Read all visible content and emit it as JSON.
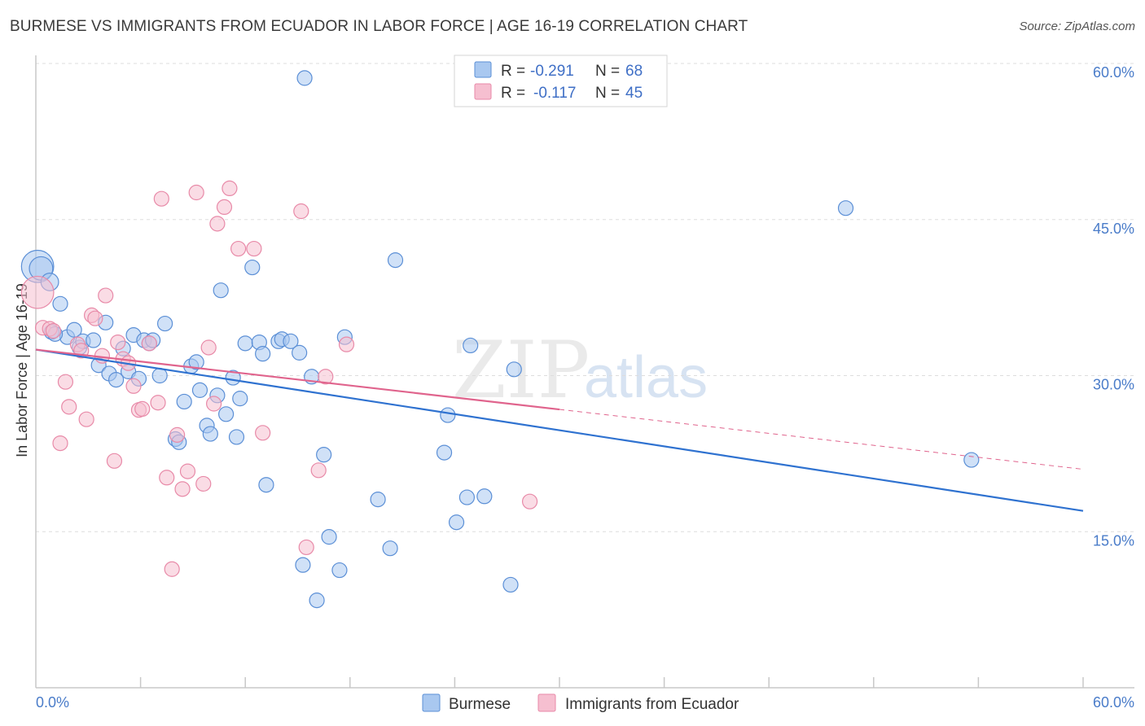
{
  "header": {
    "title": "BURMESE VS IMMIGRANTS FROM ECUADOR IN LABOR FORCE | AGE 16-19 CORRELATION CHART",
    "source": "Source: ZipAtlas.com"
  },
  "watermark": {
    "zip": "ZIP",
    "atlas": "atlas"
  },
  "colors": {
    "burmese_fill": "#a9c8f0",
    "burmese_stroke": "#5b8fd6",
    "burmese_line": "#2f72d0",
    "ecuador_fill": "#f6bfd0",
    "ecuador_stroke": "#e88aa8",
    "ecuador_line": "#e0648d",
    "tick_label": "#4a7cc9",
    "grid": "#dddddd"
  },
  "legend_top": {
    "rows": [
      {
        "r_label": "R =",
        "r_value": "-0.291",
        "n_label": "N =",
        "n_value": "68"
      },
      {
        "r_label": "R =",
        "r_value": "-0.117",
        "n_label": "N =",
        "n_value": "45"
      }
    ]
  },
  "legend_bottom": {
    "burmese": "Burmese",
    "ecuador": "Immigrants from Ecuador"
  },
  "chart_data": {
    "type": "scatter",
    "title": "BURMESE VS IMMIGRANTS FROM ECUADOR IN LABOR FORCE | AGE 16-19 CORRELATION CHART",
    "xlabel": "",
    "ylabel": "In Labor Force | Age 16-19",
    "xlim": [
      0,
      60
    ],
    "ylim": [
      0,
      60
    ],
    "x_tick_labels": [
      "0.0%",
      "60.0%"
    ],
    "y_ticks": [
      15,
      30,
      45,
      60
    ],
    "y_tick_labels": [
      "15.0%",
      "30.0%",
      "45.0%",
      "60.0%"
    ],
    "grid": "horizontal dashed",
    "legend_placement": "top-center and bottom",
    "series": [
      {
        "name": "Burmese",
        "R": -0.291,
        "N": 68,
        "trend": {
          "x0": 0,
          "y0": 32.5,
          "x1": 60,
          "y1": 17.0,
          "dashed_from": null
        },
        "points": [
          [
            0.1,
            40.5,
            2.2
          ],
          [
            0.3,
            40.3,
            1.6
          ],
          [
            0.8,
            39.0,
            1.2
          ],
          [
            1.4,
            36.9,
            1
          ],
          [
            0.9,
            34.2,
            1
          ],
          [
            1.8,
            33.7,
            1
          ],
          [
            2.2,
            34.4,
            1
          ],
          [
            2.5,
            32.7,
            1
          ],
          [
            2.7,
            33.3,
            1
          ],
          [
            3.3,
            33.4,
            1
          ],
          [
            4.0,
            35.1,
            1
          ],
          [
            3.6,
            31.0,
            1
          ],
          [
            4.2,
            30.2,
            1
          ],
          [
            4.6,
            29.6,
            1
          ],
          [
            5.0,
            32.6,
            1
          ],
          [
            5.3,
            30.4,
            1
          ],
          [
            5.6,
            33.9,
            1
          ],
          [
            5.9,
            29.7,
            1
          ],
          [
            6.2,
            33.4,
            1
          ],
          [
            6.5,
            33.1,
            1
          ],
          [
            6.7,
            33.4,
            1
          ],
          [
            7.1,
            30.0,
            1
          ],
          [
            7.4,
            35.0,
            1
          ],
          [
            8.0,
            23.9,
            1
          ],
          [
            8.2,
            23.6,
            1
          ],
          [
            8.5,
            27.5,
            1
          ],
          [
            8.9,
            30.9,
            1
          ],
          [
            9.2,
            31.3,
            1
          ],
          [
            9.4,
            28.6,
            1
          ],
          [
            9.8,
            25.2,
            1
          ],
          [
            10.0,
            24.4,
            1
          ],
          [
            10.4,
            28.1,
            1
          ],
          [
            10.6,
            38.2,
            1
          ],
          [
            10.9,
            26.3,
            1
          ],
          [
            11.3,
            29.8,
            1
          ],
          [
            11.5,
            24.1,
            1
          ],
          [
            11.7,
            27.8,
            1
          ],
          [
            12.0,
            33.1,
            1
          ],
          [
            12.4,
            40.4,
            1
          ],
          [
            12.8,
            33.2,
            1
          ],
          [
            13.0,
            32.1,
            1
          ],
          [
            13.2,
            19.5,
            1
          ],
          [
            13.9,
            33.3,
            1
          ],
          [
            14.1,
            33.5,
            1
          ],
          [
            14.6,
            33.3,
            1
          ],
          [
            15.1,
            32.2,
            1
          ],
          [
            15.3,
            11.8,
            1
          ],
          [
            15.4,
            58.6,
            1
          ],
          [
            15.8,
            29.9,
            1
          ],
          [
            16.1,
            8.4,
            1
          ],
          [
            16.5,
            22.4,
            1
          ],
          [
            16.8,
            14.5,
            1
          ],
          [
            17.4,
            11.3,
            1
          ],
          [
            17.7,
            33.7,
            1
          ],
          [
            19.6,
            18.1,
            1
          ],
          [
            20.3,
            13.4,
            1
          ],
          [
            20.6,
            41.1,
            1
          ],
          [
            23.4,
            22.6,
            1
          ],
          [
            23.6,
            26.2,
            1
          ],
          [
            24.1,
            15.9,
            1
          ],
          [
            24.7,
            18.3,
            1
          ],
          [
            24.9,
            32.9,
            1
          ],
          [
            25.7,
            18.4,
            1
          ],
          [
            27.2,
            9.9,
            1
          ],
          [
            27.4,
            30.6,
            1
          ],
          [
            46.4,
            46.1,
            1
          ],
          [
            53.6,
            21.9,
            1
          ],
          [
            1.1,
            34.0,
            1
          ]
        ]
      },
      {
        "name": "Immigrants from Ecuador",
        "R": -0.117,
        "N": 45,
        "trend": {
          "x0": 0,
          "y0": 32.5,
          "x1": 60,
          "y1": 21.0,
          "dashed_from": 30
        },
        "points": [
          [
            0.1,
            38.0,
            2.2
          ],
          [
            0.4,
            34.6,
            1
          ],
          [
            0.8,
            34.5,
            1
          ],
          [
            1.0,
            34.3,
            1
          ],
          [
            1.4,
            23.5,
            1
          ],
          [
            1.7,
            29.4,
            1
          ],
          [
            1.9,
            27.0,
            1
          ],
          [
            2.4,
            33.0,
            1
          ],
          [
            2.6,
            32.4,
            1
          ],
          [
            2.9,
            25.8,
            1
          ],
          [
            3.2,
            35.8,
            1
          ],
          [
            3.4,
            35.5,
            1
          ],
          [
            3.8,
            31.9,
            1
          ],
          [
            4.0,
            37.7,
            1
          ],
          [
            4.5,
            21.8,
            1
          ],
          [
            4.7,
            33.2,
            1
          ],
          [
            5.0,
            31.6,
            1
          ],
          [
            5.3,
            31.2,
            1
          ],
          [
            5.6,
            29.0,
            1
          ],
          [
            5.9,
            26.7,
            1
          ],
          [
            6.1,
            26.8,
            1
          ],
          [
            6.5,
            33.1,
            1
          ],
          [
            7.0,
            27.4,
            1
          ],
          [
            7.2,
            47.0,
            1
          ],
          [
            7.5,
            20.2,
            1
          ],
          [
            7.8,
            11.4,
            1
          ],
          [
            8.1,
            24.3,
            1
          ],
          [
            8.4,
            19.1,
            1
          ],
          [
            8.7,
            20.8,
            1
          ],
          [
            9.2,
            47.6,
            1
          ],
          [
            9.6,
            19.6,
            1
          ],
          [
            9.9,
            32.7,
            1
          ],
          [
            10.2,
            27.3,
            1
          ],
          [
            10.4,
            44.6,
            1
          ],
          [
            10.8,
            46.2,
            1
          ],
          [
            11.1,
            48.0,
            1
          ],
          [
            11.6,
            42.2,
            1
          ],
          [
            12.5,
            42.2,
            1
          ],
          [
            13.0,
            24.5,
            1
          ],
          [
            15.2,
            45.8,
            1
          ],
          [
            15.5,
            13.5,
            1
          ],
          [
            16.2,
            20.9,
            1
          ],
          [
            16.6,
            29.9,
            1
          ],
          [
            17.8,
            33.0,
            1
          ],
          [
            28.3,
            17.9,
            1
          ]
        ]
      }
    ]
  }
}
